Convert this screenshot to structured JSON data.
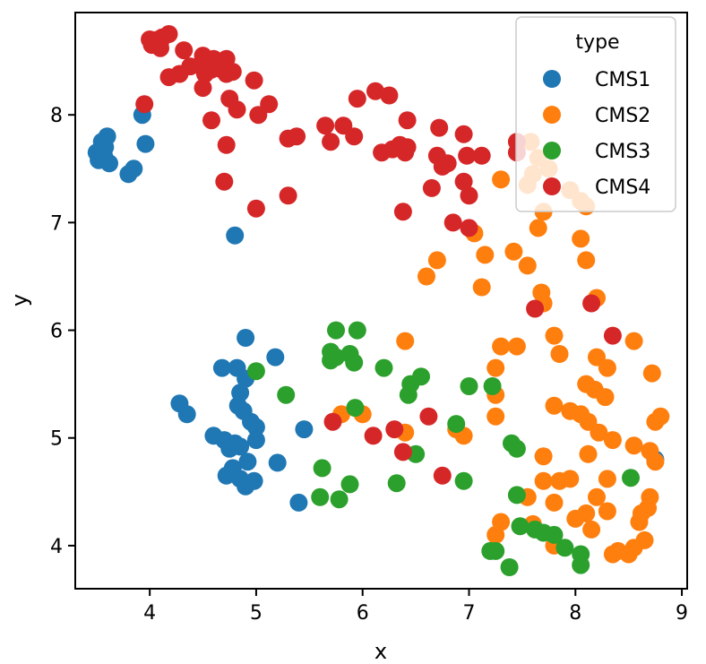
{
  "chart_data": {
    "type": "scatter",
    "xlabel": "x",
    "ylabel": "y",
    "xlim": [
      3.3,
      9.05
    ],
    "ylim": [
      3.6,
      8.95
    ],
    "xticks": [
      4,
      5,
      6,
      7,
      8,
      9
    ],
    "yticks": [
      4,
      5,
      6,
      7,
      8
    ],
    "grid": false,
    "legend": {
      "title": "type",
      "placement": "top-right"
    },
    "series": [
      {
        "name": "CMS1",
        "color": "#1f77b4",
        "points": [
          [
            3.5,
            7.65
          ],
          [
            3.55,
            7.75
          ],
          [
            3.6,
            7.8
          ],
          [
            3.58,
            7.7
          ],
          [
            3.62,
            7.55
          ],
          [
            3.52,
            7.58
          ],
          [
            3.57,
            7.62
          ],
          [
            3.8,
            7.45
          ],
          [
            3.85,
            7.5
          ],
          [
            3.93,
            8.0
          ],
          [
            3.96,
            7.73
          ],
          [
            4.8,
            6.88
          ],
          [
            4.9,
            5.93
          ],
          [
            4.68,
            5.65
          ],
          [
            4.82,
            5.65
          ],
          [
            4.9,
            5.55
          ],
          [
            4.85,
            5.42
          ],
          [
            4.88,
            5.25
          ],
          [
            4.83,
            5.3
          ],
          [
            4.95,
            5.15
          ],
          [
            5.0,
            5.1
          ],
          [
            5.0,
            4.98
          ],
          [
            4.7,
            4.98
          ],
          [
            4.8,
            4.95
          ],
          [
            4.75,
            4.9
          ],
          [
            4.85,
            4.92
          ],
          [
            4.6,
            5.02
          ],
          [
            4.28,
            5.32
          ],
          [
            4.35,
            5.22
          ],
          [
            4.92,
            4.78
          ],
          [
            4.72,
            4.65
          ],
          [
            4.78,
            4.72
          ],
          [
            4.85,
            4.62
          ],
          [
            4.9,
            4.55
          ],
          [
            4.98,
            4.6
          ],
          [
            5.2,
            4.77
          ],
          [
            5.18,
            5.75
          ],
          [
            5.45,
            5.08
          ],
          [
            5.4,
            4.4
          ],
          [
            8.75,
            4.8
          ]
        ]
      },
      {
        "name": "CMS2",
        "color": "#ff7f0e",
        "points": [
          [
            7.3,
            7.4
          ],
          [
            7.55,
            7.35
          ],
          [
            7.65,
            7.6
          ],
          [
            7.6,
            7.45
          ],
          [
            7.58,
            7.75
          ],
          [
            7.75,
            7.5
          ],
          [
            7.95,
            7.3
          ],
          [
            8.05,
            7.2
          ],
          [
            8.1,
            7.15
          ],
          [
            7.7,
            7.1
          ],
          [
            7.65,
            6.95
          ],
          [
            7.05,
            6.9
          ],
          [
            6.7,
            6.65
          ],
          [
            6.6,
            6.5
          ],
          [
            7.15,
            6.7
          ],
          [
            7.12,
            6.4
          ],
          [
            7.42,
            6.73
          ],
          [
            7.55,
            6.6
          ],
          [
            7.68,
            6.35
          ],
          [
            7.7,
            6.25
          ],
          [
            8.05,
            6.85
          ],
          [
            8.1,
            6.65
          ],
          [
            8.2,
            6.3
          ],
          [
            7.8,
            5.95
          ],
          [
            7.85,
            5.78
          ],
          [
            7.3,
            5.85
          ],
          [
            7.45,
            5.85
          ],
          [
            7.25,
            5.65
          ],
          [
            6.4,
            5.9
          ],
          [
            8.2,
            5.75
          ],
          [
            8.3,
            5.65
          ],
          [
            8.55,
            5.9
          ],
          [
            8.72,
            5.6
          ],
          [
            8.1,
            5.5
          ],
          [
            8.18,
            5.45
          ],
          [
            8.28,
            5.38
          ],
          [
            7.8,
            5.3
          ],
          [
            7.95,
            5.25
          ],
          [
            8.05,
            5.22
          ],
          [
            8.12,
            5.15
          ],
          [
            8.22,
            5.05
          ],
          [
            8.35,
            4.98
          ],
          [
            7.25,
            5.4
          ],
          [
            7.25,
            5.2
          ],
          [
            6.88,
            5.08
          ],
          [
            6.95,
            5.02
          ],
          [
            6.4,
            5.05
          ],
          [
            5.8,
            5.22
          ],
          [
            6.0,
            5.22
          ],
          [
            8.55,
            4.93
          ],
          [
            8.7,
            4.88
          ],
          [
            8.75,
            4.78
          ],
          [
            8.8,
            5.2
          ],
          [
            8.75,
            5.15
          ],
          [
            8.12,
            4.85
          ],
          [
            7.7,
            4.83
          ],
          [
            7.7,
            4.6
          ],
          [
            7.85,
            4.6
          ],
          [
            7.95,
            4.62
          ],
          [
            8.3,
            4.62
          ],
          [
            8.2,
            4.45
          ],
          [
            8.3,
            4.32
          ],
          [
            8.7,
            4.45
          ],
          [
            8.68,
            4.35
          ],
          [
            7.3,
            4.22
          ],
          [
            7.55,
            4.45
          ],
          [
            7.6,
            4.2
          ],
          [
            7.8,
            4.4
          ],
          [
            8.0,
            4.25
          ],
          [
            8.1,
            4.3
          ],
          [
            8.15,
            4.15
          ],
          [
            8.62,
            4.3
          ],
          [
            8.6,
            4.22
          ],
          [
            8.65,
            4.05
          ],
          [
            7.8,
            4.0
          ],
          [
            8.4,
            3.95
          ],
          [
            8.35,
            3.92
          ],
          [
            8.5,
            3.92
          ],
          [
            8.55,
            3.98
          ],
          [
            7.25,
            4.1
          ]
        ]
      },
      {
        "name": "CMS3",
        "color": "#2ca02c",
        "points": [
          [
            5.75,
            6.0
          ],
          [
            5.95,
            6.0
          ],
          [
            5.7,
            5.8
          ],
          [
            5.7,
            5.72
          ],
          [
            5.75,
            5.75
          ],
          [
            5.88,
            5.78
          ],
          [
            5.92,
            5.7
          ],
          [
            5.0,
            5.62
          ],
          [
            5.28,
            5.4
          ],
          [
            6.2,
            5.65
          ],
          [
            6.45,
            5.5
          ],
          [
            6.55,
            5.57
          ],
          [
            6.43,
            5.4
          ],
          [
            7.0,
            5.48
          ],
          [
            7.22,
            5.48
          ],
          [
            5.93,
            5.28
          ],
          [
            6.88,
            5.13
          ],
          [
            7.4,
            4.95
          ],
          [
            7.45,
            4.9
          ],
          [
            6.5,
            4.85
          ],
          [
            5.62,
            4.72
          ],
          [
            5.88,
            4.57
          ],
          [
            6.32,
            4.58
          ],
          [
            6.95,
            4.6
          ],
          [
            5.6,
            4.45
          ],
          [
            5.78,
            4.43
          ],
          [
            7.45,
            4.47
          ],
          [
            7.48,
            4.18
          ],
          [
            7.62,
            4.15
          ],
          [
            7.7,
            4.12
          ],
          [
            7.8,
            4.1
          ],
          [
            7.9,
            3.98
          ],
          [
            8.05,
            3.92
          ],
          [
            8.05,
            3.82
          ],
          [
            7.2,
            3.95
          ],
          [
            7.25,
            3.95
          ],
          [
            7.38,
            3.8
          ],
          [
            8.52,
            4.63
          ]
        ]
      },
      {
        "name": "CMS4",
        "color": "#d62728",
        "points": [
          [
            4.0,
            8.7
          ],
          [
            4.02,
            8.65
          ],
          [
            4.08,
            8.7
          ],
          [
            4.1,
            8.68
          ],
          [
            4.12,
            8.72
          ],
          [
            4.18,
            8.75
          ],
          [
            4.1,
            8.62
          ],
          [
            4.32,
            8.6
          ],
          [
            4.5,
            8.55
          ],
          [
            4.6,
            8.52
          ],
          [
            4.72,
            8.52
          ],
          [
            4.38,
            8.45
          ],
          [
            4.48,
            8.45
          ],
          [
            4.58,
            8.42
          ],
          [
            4.68,
            8.42
          ],
          [
            4.52,
            8.38
          ],
          [
            4.72,
            8.38
          ],
          [
            4.18,
            8.35
          ],
          [
            4.28,
            8.38
          ],
          [
            4.78,
            8.4
          ],
          [
            4.98,
            8.32
          ],
          [
            4.5,
            8.25
          ],
          [
            4.75,
            8.15
          ],
          [
            4.82,
            8.05
          ],
          [
            5.12,
            8.1
          ],
          [
            5.02,
            8.0
          ],
          [
            3.95,
            8.1
          ],
          [
            4.58,
            7.95
          ],
          [
            4.72,
            7.72
          ],
          [
            4.7,
            7.38
          ],
          [
            5.0,
            7.13
          ],
          [
            5.3,
            7.25
          ],
          [
            5.3,
            7.78
          ],
          [
            5.38,
            7.8
          ],
          [
            5.65,
            7.9
          ],
          [
            5.7,
            7.75
          ],
          [
            5.82,
            7.9
          ],
          [
            5.92,
            7.8
          ],
          [
            5.95,
            8.15
          ],
          [
            6.12,
            8.22
          ],
          [
            6.25,
            8.18
          ],
          [
            6.42,
            7.95
          ],
          [
            6.18,
            7.65
          ],
          [
            6.28,
            7.68
          ],
          [
            6.35,
            7.72
          ],
          [
            6.4,
            7.65
          ],
          [
            6.42,
            7.7
          ],
          [
            6.38,
            7.1
          ],
          [
            6.72,
            7.88
          ],
          [
            6.7,
            7.62
          ],
          [
            6.75,
            7.52
          ],
          [
            6.8,
            7.55
          ],
          [
            6.65,
            7.32
          ],
          [
            6.95,
            7.82
          ],
          [
            7.12,
            7.62
          ],
          [
            6.98,
            7.62
          ],
          [
            6.95,
            7.38
          ],
          [
            7.0,
            7.25
          ],
          [
            6.85,
            7.0
          ],
          [
            7.0,
            6.95
          ],
          [
            7.45,
            7.75
          ],
          [
            7.45,
            7.65
          ],
          [
            7.62,
            6.2
          ],
          [
            8.15,
            6.25
          ],
          [
            8.35,
            5.95
          ],
          [
            5.72,
            5.15
          ],
          [
            6.1,
            5.02
          ],
          [
            6.3,
            5.08
          ],
          [
            6.38,
            4.87
          ],
          [
            6.62,
            5.2
          ],
          [
            6.75,
            4.65
          ]
        ]
      }
    ]
  }
}
